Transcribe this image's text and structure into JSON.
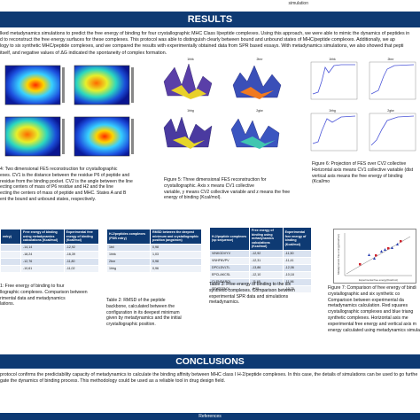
{
  "header": {
    "corner_text": "simulation"
  },
  "results_title": "RESULTS",
  "intro_lines": [
    "lked metadynamics simulations to predict the free energy of binding for four crystallographic MHC Class I/peptide complexes. Using this approach, we were able to mimic the dynamics of peptides in",
    "d to reconstruct the free energy surfaces for these complexes. This protocol was able to distinguish clearly between bound and unbound states of MHC/peptide complexes. Additionally, we ap",
    "logy to six synthetic MHC/peptide complexes, and we compared the results with experimentally obtained data from SPR based essays. With metadynamics simulations, we also showed that pepti",
    "itself, and negative values of ΔG indicated the spontaneity of complex formation."
  ],
  "fig4_caption": [
    "4: Two dimensional FES reconstruction for crystallographic",
    "exes. CV1 is the distance between the residue P6 of peptide and",
    "residue from the binding pocket. CV2 is the angle between the line",
    "ecting centers of mass of P6 residue and H2 and the line",
    "ecting the centers of mass of peptide and MHC. States A and B",
    "ent the bound and unbound states, respectively."
  ],
  "fig5_caption": [
    "Figure 5: Three dimensional FES reconstruction for",
    "crystallographic. Axis x means CV1 collective",
    "variable, y means CV2 collective variable and z means the free",
    "energy of binding (Kcal/mol)."
  ],
  "fig6_caption": [
    "Figure 6: Projection of FES over CV2 collective",
    "Horizontal axis means CV1 collective variable (dist",
    "vertical axis means the free energy of binding (Kcal/mo"
  ],
  "fig6_panels": [
    "1hhk",
    "2bnr",
    "1hhg",
    "2gtw"
  ],
  "fig5_panels": [
    "1hhk",
    "2bnr",
    "1hhg",
    "2gtw"
  ],
  "table1": {
    "headers": [
      "entry)",
      "Free energy of binding using metadynamics calculations (Kcal/mol)",
      "Experimental free energy of binding (Kcal/mol)"
    ],
    "rows": [
      [
        "",
        "-14,14",
        "-12,92"
      ],
      [
        "",
        "-18,24",
        "-16,39"
      ],
      [
        "",
        "-12,76",
        "-11,80"
      ],
      [
        "",
        "-10,61",
        "-11,02"
      ]
    ]
  },
  "table1_caption": [
    "1: Free energy of binding to four",
    "llographic complexes. Comparison between",
    "rimental data and metadynamics",
    "lations."
  ],
  "table2": {
    "headers": [
      "H-2/peptides complexes (PDB entry)",
      "RMSD between the deepest minimum and crystallographic position (angstrom)"
    ],
    "rows": [
      [
        "1bii",
        "0,98"
      ],
      [
        "1hhk",
        "1,03"
      ],
      [
        "2bnr",
        "0,98"
      ],
      [
        "1hhg",
        "0,96"
      ]
    ]
  },
  "table2_caption": [
    "Table 2: RMSD of the peptide",
    "backbone, calculated between the",
    "configuration in its deepest minimum",
    "given by metadynamics and the initial",
    "crystallographic position."
  ],
  "table3": {
    "headers": [
      "H-2/peptide complexes (sp sequence)",
      "Free energy of binding using metadynamics calculations (Kcal/mol)",
      "Experimental free energy of binding (Kcal/mol)"
    ],
    "rows": [
      [
        "VINKGDVYV",
        "-12,92",
        "-11,50"
      ],
      [
        "VNHFNVPV",
        "-12,31",
        "-11,41"
      ],
      [
        "DPCLDVLTL",
        "-13,86",
        "-12,06"
      ],
      [
        "EPCLAKCSL",
        "-12,10",
        "-10,18"
      ],
      [
        "CLSNDARQL",
        "-11,65",
        "-11,96"
      ],
      [
        "SFVTSTAQL",
        "-9,55",
        "-10,75"
      ]
    ]
  },
  "table3_caption": [
    "Table 3: Free energy of binding to the six",
    "synthetic complexes. Comparison between",
    "experimental SPR data and simulations",
    "metadynamics."
  ],
  "fig7_caption": [
    "Figure 7: Comparison of free energy of bindi",
    "crystallographic and six synthetic co",
    "Comparison between experimental da",
    "metadynamics calculation. Red squares",
    "crystallographic complexes and blue triang",
    "synthetic complexes. Horizontal axis me",
    "experimental free energy and vertical axis m",
    "energy calculated using metadynamics simula"
  ],
  "fig7_axis_x": "Experimental free energy(Kcal/mol)",
  "fig7_axis_y": "Metadynamics free energy(Kcal/mol)",
  "conclusions_title": "CONCLUSIONS",
  "conclusion_lines": [
    "protocol confirms the predictability capacity of metadynamics to calculate the binding affinity between MHC class I H-2/peptide complexes. In this case, the details of simulations can be used to go furthe",
    "gate the dynamics of binding process. This methodology could be used as a reliable tool in drug design field."
  ],
  "references_label": "References",
  "colors": {
    "banner": "#0e3a73",
    "table_header": "#0e3a73",
    "crystal_marker": "#d0202a",
    "synthetic_marker": "#2a3fb0"
  }
}
